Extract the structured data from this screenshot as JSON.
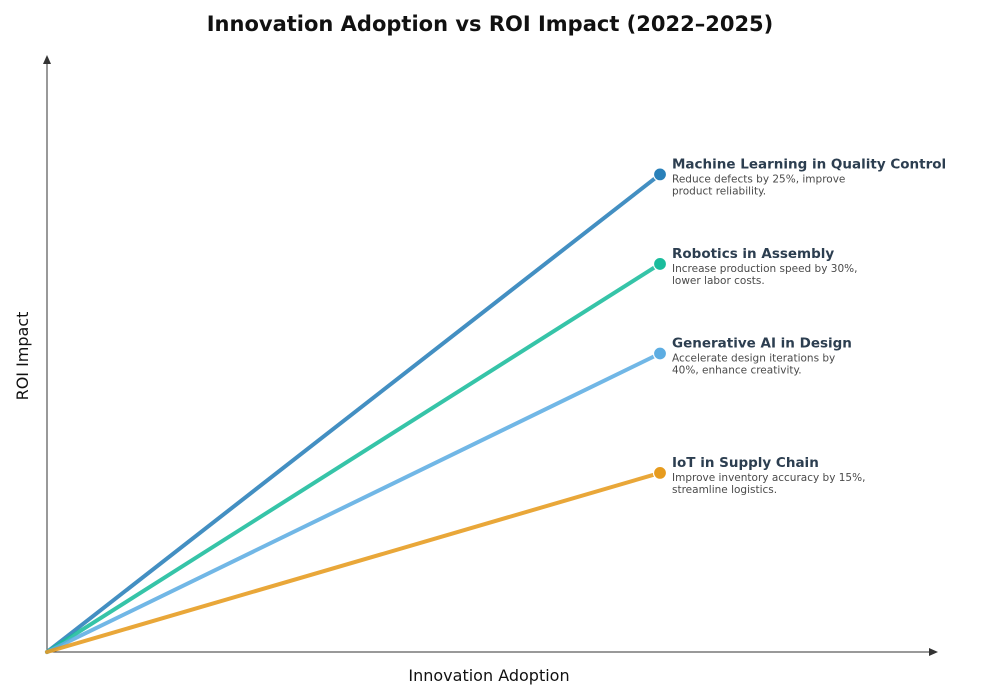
{
  "chart_data": {
    "type": "line",
    "title": "Innovation Adoption vs ROI Impact (2022–2025)",
    "xlabel": "Innovation Adoption",
    "ylabel": "ROI Impact",
    "grid": false,
    "legend": "inline-right",
    "xlim": [
      0,
      1
    ],
    "ylim": [
      0,
      1
    ],
    "series": [
      {
        "name": "Machine Learning in Quality Control",
        "description": [
          "Reduce defects by 25%, improve",
          "product reliability."
        ],
        "color": "#2980b9",
        "x": [
          0,
          0.688
        ],
        "y": [
          0,
          0.8
        ]
      },
      {
        "name": "Robotics in Assembly",
        "description": [
          "Increase production speed by 30%,",
          "lower labor costs."
        ],
        "color": "#1abc9c",
        "x": [
          0,
          0.688
        ],
        "y": [
          0,
          0.65
        ]
      },
      {
        "name": "Generative AI in Design",
        "description": [
          "Accelerate design iterations by",
          "40%, enhance creativity."
        ],
        "color": "#5dade2",
        "x": [
          0,
          0.688
        ],
        "y": [
          0,
          0.5
        ]
      },
      {
        "name": "IoT in Supply Chain",
        "description": [
          "Improve inventory accuracy by 15%,",
          "streamline logistics."
        ],
        "color": "#e69b1e",
        "x": [
          0,
          0.688
        ],
        "y": [
          0,
          0.3
        ]
      }
    ]
  }
}
